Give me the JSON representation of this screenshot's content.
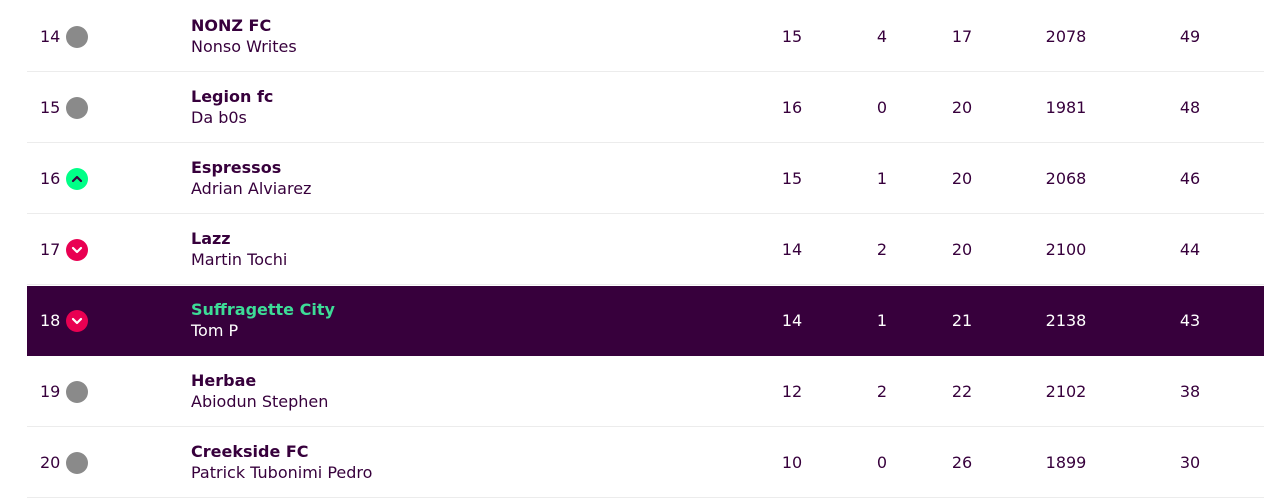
{
  "table": {
    "rows": [
      {
        "rank": 14,
        "movement": "same",
        "team": "NONZ FC",
        "manager": "Nonso Writes",
        "stats": [
          15,
          4,
          17,
          2078,
          49
        ]
      },
      {
        "rank": 15,
        "movement": "same",
        "team": "Legion fc",
        "manager": "Da b0s",
        "stats": [
          16,
          0,
          20,
          1981,
          48
        ]
      },
      {
        "rank": 16,
        "movement": "up",
        "team": "Espressos",
        "manager": "Adrian Alviarez",
        "stats": [
          15,
          1,
          20,
          2068,
          46
        ]
      },
      {
        "rank": 17,
        "movement": "down",
        "team": "Lazz",
        "manager": "Martin Tochi",
        "stats": [
          14,
          2,
          20,
          2100,
          44
        ]
      },
      {
        "rank": 18,
        "movement": "down",
        "team": "Suffragette City",
        "manager": "Tom P",
        "stats": [
          14,
          1,
          21,
          2138,
          43
        ],
        "highlighted": true
      },
      {
        "rank": 19,
        "movement": "same",
        "team": "Herbae",
        "manager": "Abiodun Stephen",
        "stats": [
          12,
          2,
          22,
          2102,
          38
        ]
      },
      {
        "rank": 20,
        "movement": "same",
        "team": "Creekside FC",
        "manager": "Patrick Tubonimi Pedro",
        "stats": [
          10,
          0,
          26,
          1899,
          30
        ]
      }
    ]
  }
}
